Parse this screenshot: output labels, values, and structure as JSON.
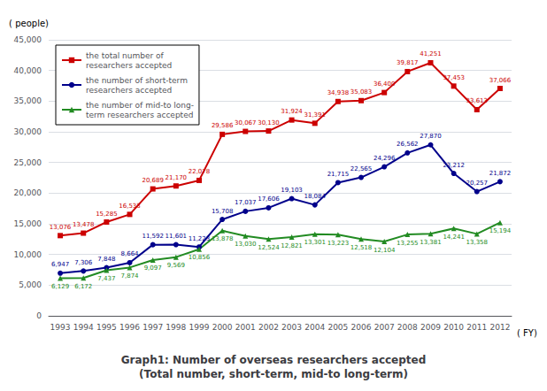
{
  "chart_data": {
    "type": "line",
    "title": "Graph1: Number of overseas researchers accepted\n(Total number, short-term, mid-to long-term)",
    "xlabel": "( FY)",
    "ylabel": "( people)",
    "categories": [
      "1993",
      "1994",
      "1995",
      "1996",
      "1997",
      "1998",
      "1999",
      "2000",
      "2001",
      "2002",
      "2003",
      "2004",
      "2005",
      "2006",
      "2007",
      "2008",
      "2009",
      "2010",
      "2011",
      "2012"
    ],
    "series": [
      {
        "name": "the total number of\nresearchers accepted",
        "color": "#cc0000",
        "marker": "square",
        "values": [
          13076,
          13478,
          15285,
          16533,
          20689,
          21170,
          22078,
          29586,
          30067,
          30130,
          31924,
          31391,
          34938,
          35083,
          36400,
          39817,
          41251,
          37453,
          33613,
          37066
        ],
        "value_labels": [
          "13,076",
          "13,478",
          "15,285",
          "16,533",
          "20,689",
          "21,170",
          "22,078",
          "29,586",
          "30,067",
          "30,130",
          "31,924",
          "31,391",
          "34,938",
          "35,083",
          "36,400",
          "39,817",
          "41,251",
          "37,453",
          "33,613",
          "37,066"
        ]
      },
      {
        "name": "the number of short-term\nresearchers accepted",
        "color": "#00008B",
        "marker": "circle",
        "values": [
          6947,
          7306,
          7848,
          8664,
          11592,
          11601,
          11223,
          15708,
          17037,
          17606,
          19103,
          18084,
          21715,
          22565,
          24296,
          26562,
          27870,
          23212,
          20257,
          21872
        ],
        "value_labels": [
          "6,947",
          "7,306",
          "7,848",
          "8,664",
          "11,592",
          "11,601",
          "11,223",
          "15,708",
          "17,037",
          "17,606",
          "19,103",
          "18,084",
          "21,715",
          "22,565",
          "24,296",
          "26,562",
          "27,870",
          "23,212",
          "20,257",
          "21,872"
        ]
      },
      {
        "name": "the number of mid-to long-\nterm researchers accepted",
        "color": "#228B22",
        "marker": "triangle",
        "values": [
          6129,
          6172,
          7437,
          7874,
          9097,
          9569,
          10856,
          13878,
          13030,
          12524,
          12821,
          13301,
          13223,
          12518,
          12104,
          13255,
          13381,
          14241,
          13358,
          15194
        ],
        "value_labels": [
          "6,129",
          "6,172",
          "7,437",
          "7,874",
          "9,097",
          "9,569",
          "10,856",
          "13,878",
          "13,030",
          "12,524",
          "12,821",
          "13,301",
          "13,223",
          "12,518",
          "12,104",
          "13,255",
          "13,381",
          "14,241",
          "13,358",
          "15,194"
        ]
      }
    ],
    "ylim": [
      0,
      45000
    ],
    "yticks": [
      0,
      {
        "value": 5000,
        "label": "5,000"
      },
      {
        "value": 10000,
        "label": "10,000"
      },
      {
        "value": 15000,
        "label": "15,000"
      },
      {
        "value": 20000,
        "label": "20,000"
      },
      {
        "value": 25000,
        "label": "25,000"
      },
      {
        "value": 30000,
        "label": "30,000"
      },
      {
        "value": 35000,
        "label": "35,000"
      },
      {
        "value": 40000,
        "label": "40,000"
      },
      {
        "value": 45000,
        "label": "45,000"
      }
    ],
    "grid": true,
    "legend": "upper left",
    "data_labels": true
  }
}
